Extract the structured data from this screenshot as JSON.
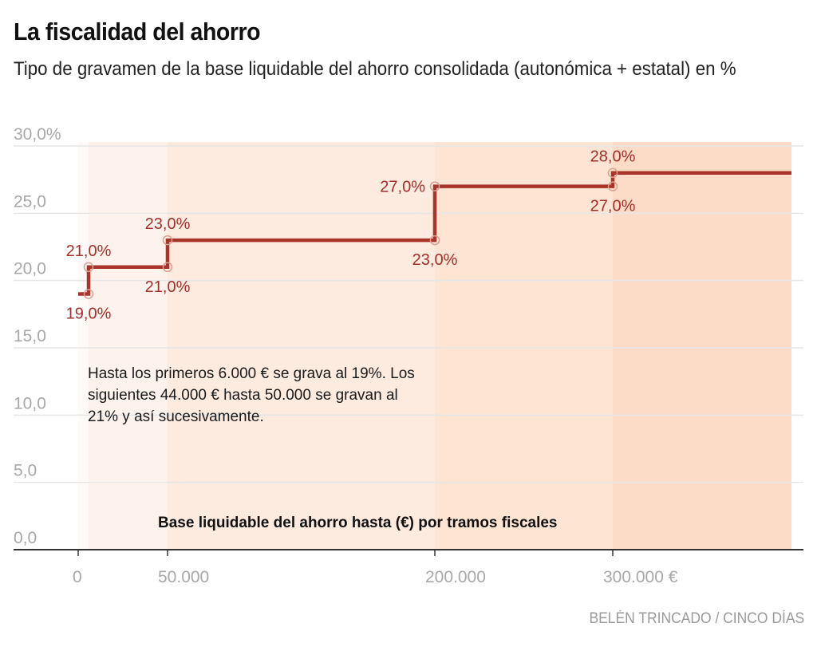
{
  "title": "La fiscalidad del ahorro",
  "subtitle": "Tipo de gravamen de la base liquidable del ahorro consolidada (autonómica + estatal) en %",
  "annotation": "Hasta los primeros 6.000 € se grava al 19%. Los siguientes 44.000 € hasta 50.000 se gravan al 21% y así sucesivamente.",
  "credit": "BELÉN TRINCADO / CINCO DÍAS",
  "colors": {
    "line": "#a8342a",
    "marker": "#d9a090",
    "label": "#a0302a",
    "grid": "#e6e6e6",
    "axis": "#333333",
    "tick_text": "#a8a8a8",
    "bands": [
      "#fffaf7",
      "#fef3ec",
      "#fdebe0",
      "#fde4d3",
      "#fcdcc6"
    ]
  },
  "chart_data": {
    "type": "line",
    "step": true,
    "title": "La fiscalidad del ahorro",
    "xlabel": "Base liquidable del ahorro hasta (€) por tramos fiscales",
    "ylabel": "",
    "xlim": [
      0,
      400000
    ],
    "ylim": [
      0,
      30
    ],
    "grid": true,
    "y_ticks": [
      {
        "value": 0,
        "label": "0,0"
      },
      {
        "value": 5,
        "label": "5,0"
      },
      {
        "value": 10,
        "label": "10,0"
      },
      {
        "value": 15,
        "label": "15,0"
      },
      {
        "value": 20,
        "label": "20,0"
      },
      {
        "value": 25,
        "label": "25,0"
      },
      {
        "value": 30,
        "label": "30,0%"
      }
    ],
    "x_ticks": [
      {
        "value": 0,
        "label": "0"
      },
      {
        "value": 50000,
        "label": "50.000"
      },
      {
        "value": 200000,
        "label": "200.000"
      },
      {
        "value": 300000,
        "label": "300.000  €"
      }
    ],
    "brackets": [
      {
        "from": 0,
        "to": 6000,
        "rate": 19
      },
      {
        "from": 6000,
        "to": 50000,
        "rate": 21
      },
      {
        "from": 50000,
        "to": 200000,
        "rate": 23
      },
      {
        "from": 200000,
        "to": 300000,
        "rate": 27
      },
      {
        "from": 300000,
        "to": 400000,
        "rate": 28
      }
    ],
    "point_labels": [
      {
        "x": 6000,
        "y": 19,
        "label": "19,0%",
        "pos": "below"
      },
      {
        "x": 6000,
        "y": 21,
        "label": "21,0%",
        "pos": "above"
      },
      {
        "x": 50000,
        "y": 21,
        "label": "21,0%",
        "pos": "below"
      },
      {
        "x": 50000,
        "y": 23,
        "label": "23,0%",
        "pos": "above"
      },
      {
        "x": 200000,
        "y": 23,
        "label": "23,0%",
        "pos": "below"
      },
      {
        "x": 200000,
        "y": 27,
        "label": "27,0%",
        "pos": "left"
      },
      {
        "x": 300000,
        "y": 27,
        "label": "27,0%",
        "pos": "below"
      },
      {
        "x": 300000,
        "y": 28,
        "label": "28,0%",
        "pos": "above"
      }
    ]
  }
}
